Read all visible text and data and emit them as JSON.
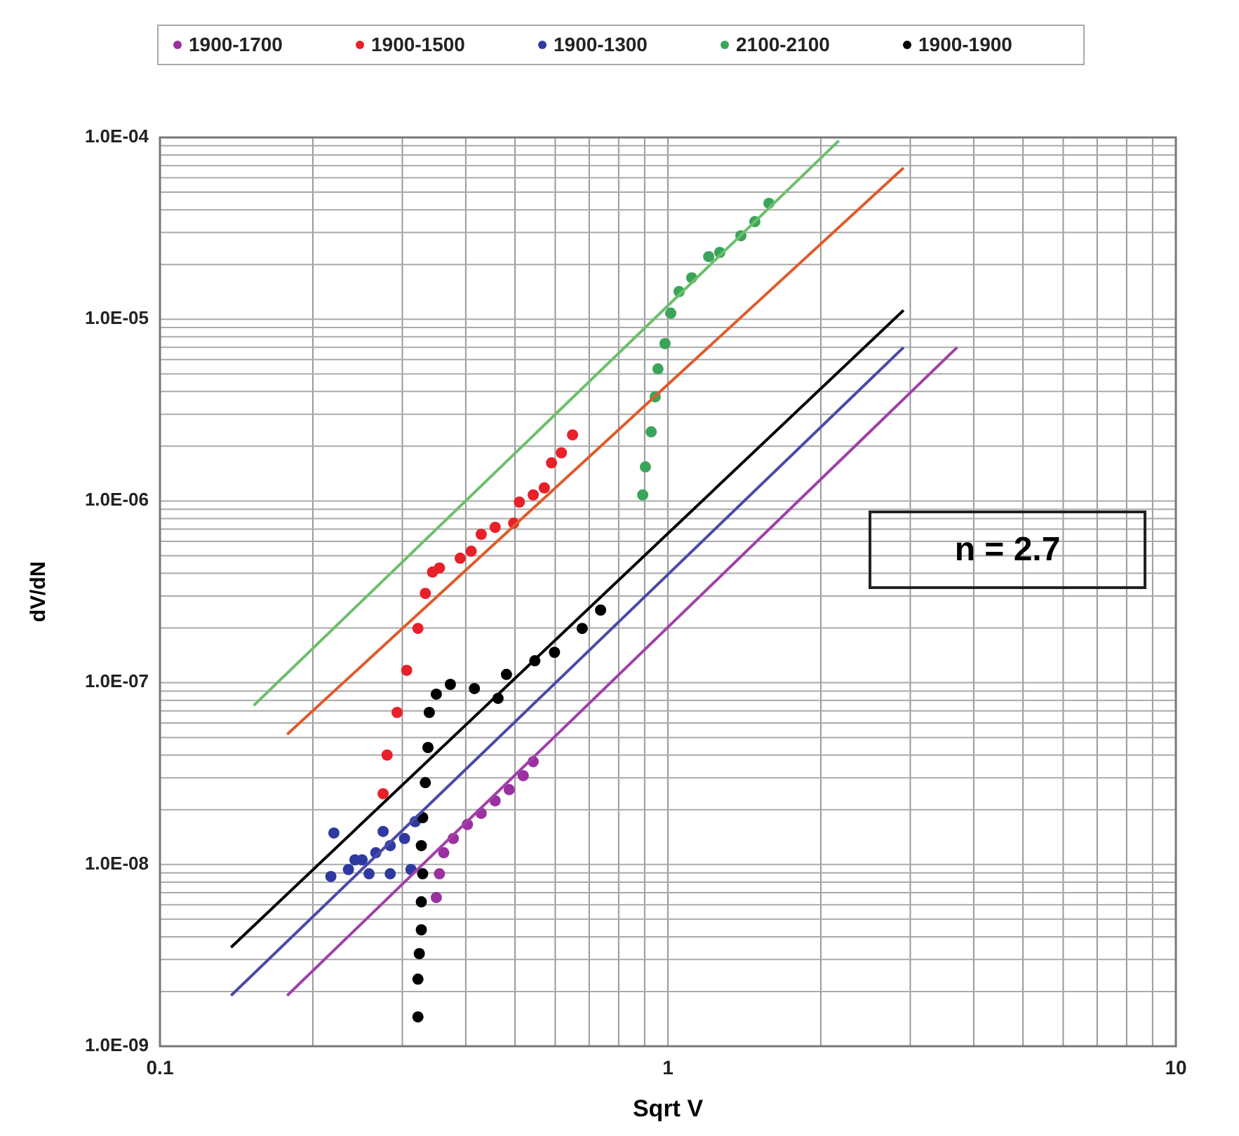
{
  "chart_data": {
    "type": "scatter",
    "xlabel": "Sqrt V",
    "ylabel": "dV/dN",
    "log": "xy",
    "grid": true,
    "legend": "top",
    "marker": "circle",
    "xlim": [
      0.1,
      10
    ],
    "xticks": [
      0.1,
      1,
      10
    ],
    "ylim": [
      1e-09,
      0.0001
    ],
    "yticks": [
      {
        "value": 1e-09,
        "label": "1.0E-09"
      },
      {
        "value": 1e-08,
        "label": "1.0E-08"
      },
      {
        "value": 1e-07,
        "label": "1.0E-07"
      },
      {
        "value": 1e-06,
        "label": "1.0E-06"
      },
      {
        "value": 1e-05,
        "label": "1.0E-05"
      },
      {
        "value": 0.0001,
        "label": "1.0E-04"
      }
    ],
    "annotations": [
      "n = 2.7"
    ],
    "series": [
      {
        "name": "1900-1700",
        "color": "#9b30a0",
        "x": [
          0.35,
          0.355,
          0.362,
          0.378,
          0.403,
          0.429,
          0.457,
          0.487,
          0.519,
          0.543
        ],
        "values": [
          6.58e-09,
          8.89e-09,
          1.16e-08,
          1.39e-08,
          1.66e-08,
          1.91e-08,
          2.24e-08,
          2.58e-08,
          3.08e-08,
          3.68e-08
        ]
      },
      {
        "name": "1900-1500",
        "color": "#e8202a",
        "x": [
          0.275,
          0.28,
          0.293,
          0.306,
          0.322,
          0.333,
          0.344,
          0.355,
          0.39,
          0.41,
          0.429,
          0.457,
          0.497,
          0.51,
          0.543,
          0.571,
          0.59,
          0.617,
          0.649
        ],
        "values": [
          2.45e-08,
          4e-08,
          6.86e-08,
          1.17e-07,
          1.99e-07,
          3.1e-07,
          4.06e-07,
          4.28e-07,
          4.84e-07,
          5.29e-07,
          6.55e-07,
          7.16e-07,
          7.55e-07,
          9.86e-07,
          1.08e-06,
          1.18e-06,
          1.62e-06,
          1.84e-06,
          2.31e-06
        ]
      },
      {
        "name": "1900-1300",
        "color": "#2f3aa0",
        "x": [
          0.217,
          0.22,
          0.235,
          0.242,
          0.25,
          0.258,
          0.266,
          0.275,
          0.284,
          0.284,
          0.303,
          0.312,
          0.318
        ],
        "values": [
          8.59e-09,
          1.49e-08,
          9.38e-09,
          1.06e-08,
          1.06e-08,
          8.89e-09,
          1.16e-08,
          1.52e-08,
          1.27e-08,
          8.89e-09,
          1.39e-08,
          9.38e-09,
          1.72e-08
        ]
      },
      {
        "name": "2100-2100",
        "color": "#3aa55a",
        "x": [
          0.892,
          0.903,
          0.927,
          0.944,
          0.956,
          0.987,
          1.013,
          1.052,
          1.114,
          1.203,
          1.265,
          1.392,
          1.483,
          1.581
        ],
        "values": [
          1.08e-06,
          1.54e-06,
          2.4e-06,
          3.74e-06,
          5.33e-06,
          7.34e-06,
          1.08e-05,
          1.42e-05,
          1.69e-05,
          2.21e-05,
          2.33e-05,
          2.88e-05,
          3.44e-05,
          4.34e-05
        ]
      },
      {
        "name": "1900-1900",
        "color": "#000000",
        "x": [
          0.322,
          0.322,
          0.324,
          0.327,
          0.327,
          0.329,
          0.327,
          0.329,
          0.333,
          0.337,
          0.339,
          0.35,
          0.373,
          0.416,
          0.463,
          0.481,
          0.547,
          0.598,
          0.678,
          0.737
        ],
        "values": [
          1.45e-09,
          2.34e-09,
          3.23e-09,
          4.37e-09,
          6.23e-09,
          8.89e-09,
          1.27e-08,
          1.81e-08,
          2.82e-08,
          4.4e-08,
          6.86e-08,
          8.65e-08,
          9.79e-08,
          9.29e-08,
          8.2e-08,
          1.11e-07,
          1.32e-07,
          1.47e-07,
          1.99e-07,
          2.51e-07
        ]
      },
      {
        "type": "line",
        "marker": "none",
        "color": "#6cbf6c",
        "x": [
          0.153,
          2.17
        ],
        "values": [
          7.5e-08,
          9.6e-05
        ]
      },
      {
        "type": "line",
        "marker": "none",
        "color": "#e05a2a",
        "x": [
          0.178,
          2.91
        ],
        "values": [
          5.2e-08,
          6.8e-05
        ]
      },
      {
        "type": "line",
        "marker": "none",
        "color": "#000000",
        "x": [
          0.138,
          2.91
        ],
        "values": [
          3.5e-09,
          1.12e-05
        ]
      },
      {
        "type": "line",
        "marker": "none",
        "color": "#4a4aa8",
        "x": [
          0.138,
          2.91
        ],
        "values": [
          1.9e-09,
          7e-06
        ]
      },
      {
        "type": "line",
        "marker": "none",
        "color": "#a040a8",
        "x": [
          0.178,
          3.71
        ],
        "values": [
          1.9e-09,
          7e-06
        ]
      }
    ]
  }
}
